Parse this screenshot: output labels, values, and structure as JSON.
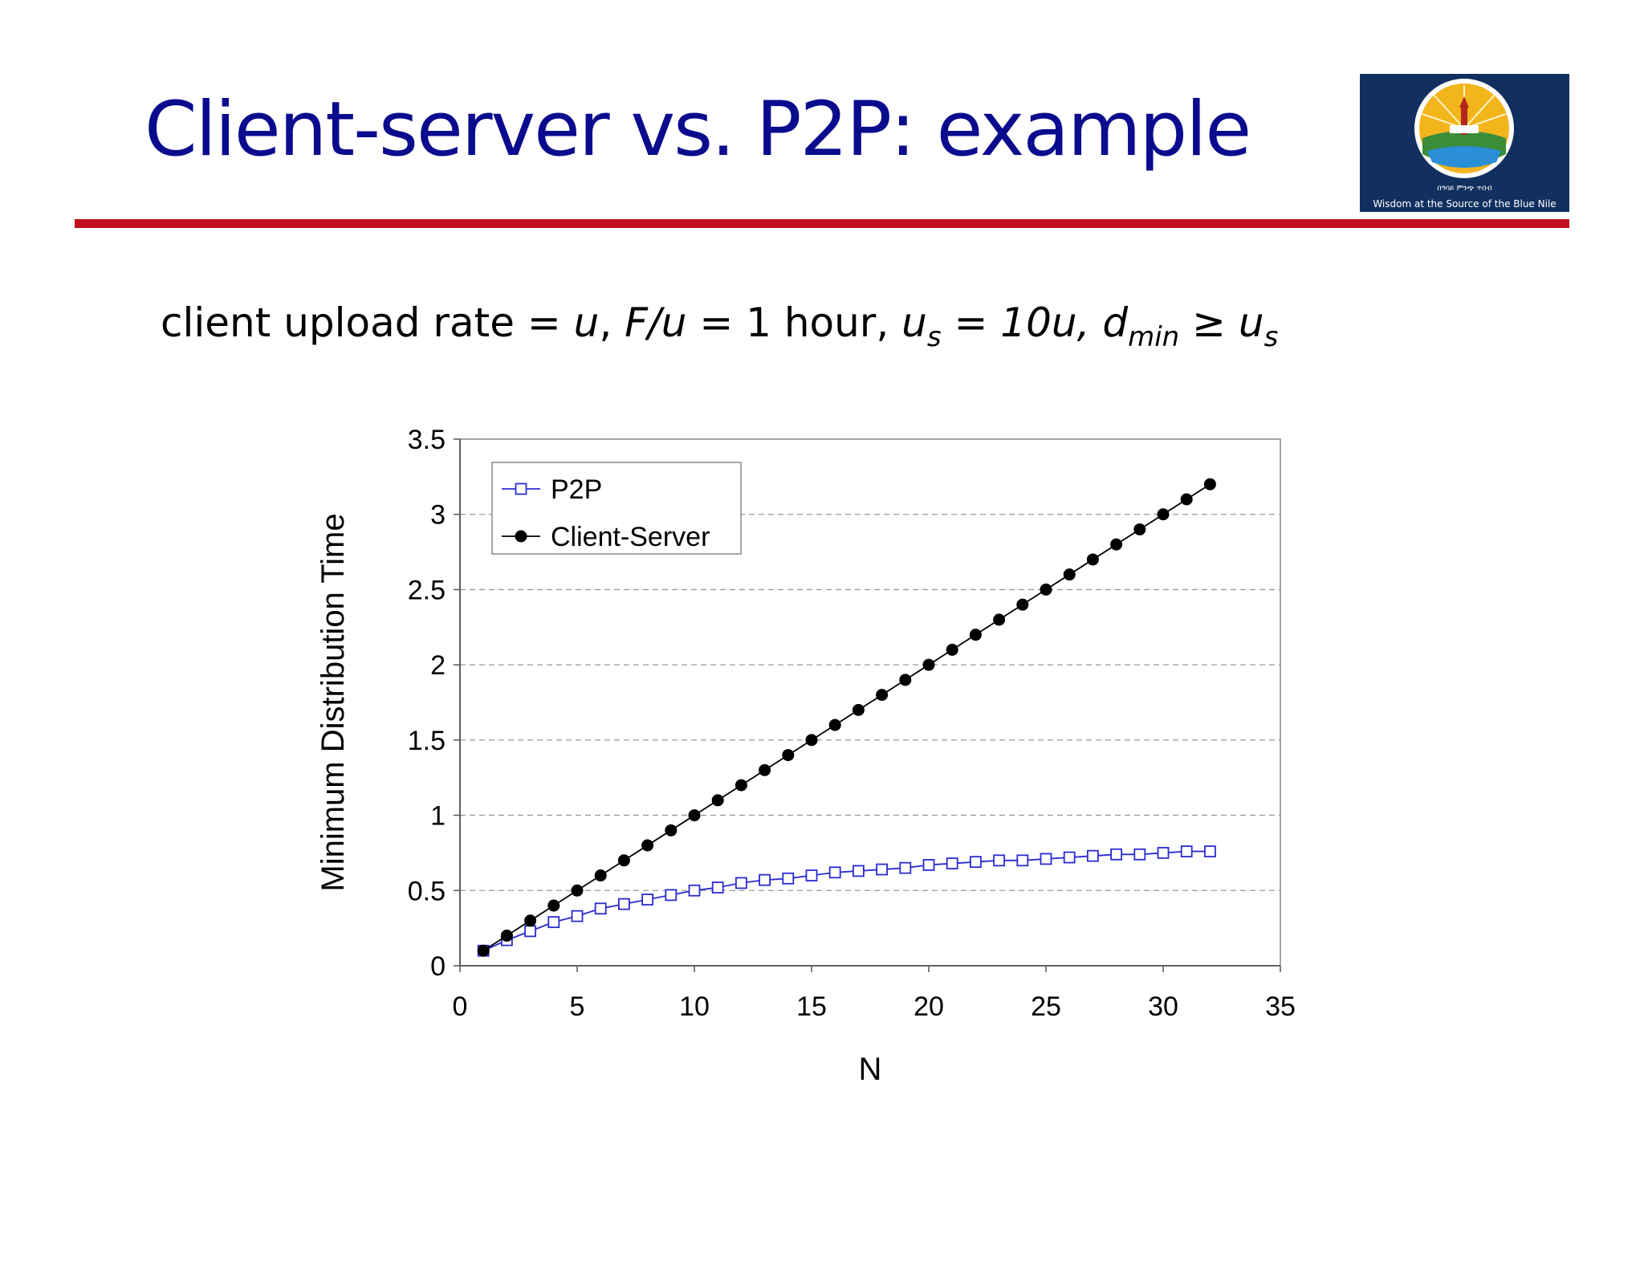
{
  "slide": {
    "title": "Client-server vs. P2P: example",
    "formula": {
      "part1": "client upload rate = ",
      "u1": "u",
      "part2": ",  ",
      "fu": "F/u",
      "part3": " = 1 hour,  ",
      "us_u": "u",
      "us_sub": "s",
      "us_rest": " = 10u,  ",
      "d": "d",
      "d_sub": "min",
      "geq": " ≥ ",
      "u2": "u",
      "u2_sub": "s"
    }
  },
  "logo": {
    "caption": "Wisdom at the Source of the Blue Nile",
    "amharic": "በዓባይ ምንጭ ጥበብ",
    "colors": {
      "background": "#12305f",
      "sun": "#f2b51c",
      "water": "#2a8fd6",
      "green": "#3c8d3a"
    }
  },
  "colors": {
    "title": "#0b0b8e",
    "rule": "#c0101d",
    "p2p": "#2b2bd1",
    "client_server": "#000000"
  },
  "chart_data": {
    "type": "line",
    "xlabel": "N",
    "ylabel": "Minimum Distribution Time",
    "xlim": [
      0,
      35
    ],
    "ylim": [
      0,
      3.5
    ],
    "xticks": [
      "0",
      "5",
      "10",
      "15",
      "20",
      "25",
      "30",
      "35"
    ],
    "yticks": [
      "0",
      "0.5",
      "1",
      "1.5",
      "2",
      "2.5",
      "3",
      "3.5"
    ],
    "grid": "horizontal dashed",
    "legend": "top-left",
    "x": [
      1,
      2,
      3,
      4,
      5,
      6,
      7,
      8,
      9,
      10,
      11,
      12,
      13,
      14,
      15,
      16,
      17,
      18,
      19,
      20,
      21,
      22,
      23,
      24,
      25,
      26,
      27,
      28,
      29,
      30,
      31,
      32
    ],
    "series": [
      {
        "name": "P2P",
        "marker": "open-square",
        "values": [
          0.1,
          0.17,
          0.23,
          0.29,
          0.33,
          0.38,
          0.41,
          0.44,
          0.47,
          0.5,
          0.52,
          0.55,
          0.57,
          0.58,
          0.6,
          0.62,
          0.63,
          0.64,
          0.65,
          0.67,
          0.68,
          0.69,
          0.7,
          0.7,
          0.71,
          0.72,
          0.73,
          0.74,
          0.74,
          0.75,
          0.76,
          0.76
        ]
      },
      {
        "name": "Client-Server",
        "marker": "filled-circle",
        "values": [
          0.1,
          0.2,
          0.3,
          0.4,
          0.5,
          0.6,
          0.7,
          0.8,
          0.9,
          1.0,
          1.1,
          1.2,
          1.3,
          1.4,
          1.5,
          1.6,
          1.7,
          1.8,
          1.9,
          2.0,
          2.1,
          2.2,
          2.3,
          2.4,
          2.5,
          2.6,
          2.7,
          2.8,
          2.9,
          3.0,
          3.1,
          3.2
        ]
      }
    ]
  }
}
